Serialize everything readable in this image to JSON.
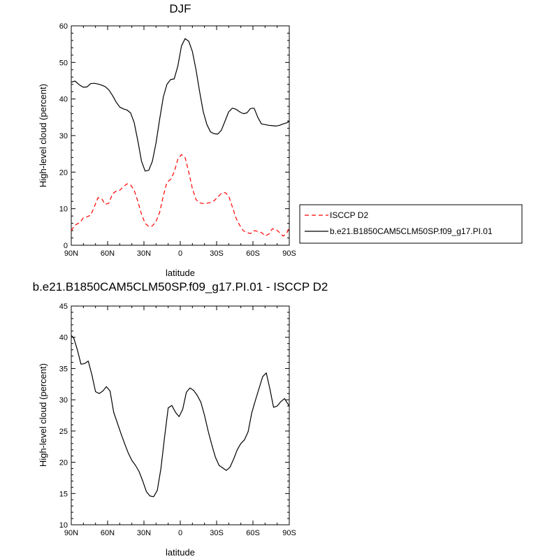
{
  "chart_data": [
    {
      "type": "line",
      "title": "DJF",
      "xlabel": "latitude",
      "ylabel": "High-level cloud (percent)",
      "xlim": [
        -90,
        90
      ],
      "ylim": [
        0,
        60
      ],
      "xticks": [
        -90,
        -60,
        -30,
        0,
        30,
        60,
        90
      ],
      "xtick_labels": [
        "90N",
        "60N",
        "30N",
        "0",
        "30S",
        "60S",
        "90S"
      ],
      "yticks": [
        0,
        10,
        20,
        30,
        40,
        50,
        60
      ],
      "ytick_labels": [
        "0",
        "10",
        "20",
        "30",
        "40",
        "50",
        "60"
      ],
      "grid": false,
      "legend": "right",
      "series": [
        {
          "name": "ISCCP D2",
          "color": "#ff0000",
          "dash": "dashed",
          "x": [
            -90,
            -87,
            -83,
            -80,
            -77,
            -74,
            -71,
            -68,
            -65,
            -62,
            -59,
            -56,
            -53,
            -50,
            -47,
            -44,
            -41,
            -38,
            -35,
            -32,
            -29,
            -26,
            -23,
            -20,
            -17,
            -14,
            -11,
            -8,
            -5,
            -2,
            1,
            4,
            7,
            10,
            13,
            16,
            19,
            22,
            25,
            28,
            31,
            34,
            37,
            40,
            43,
            46,
            49,
            52,
            55,
            58,
            61,
            64,
            67,
            70,
            73,
            76,
            79,
            82,
            85,
            88,
            90
          ],
          "y": [
            4.0,
            5.5,
            6.2,
            7.5,
            7.8,
            8.2,
            10.5,
            13.0,
            12.8,
            11.2,
            11.5,
            14.0,
            14.8,
            15.0,
            16.0,
            16.8,
            16.5,
            15.0,
            12.0,
            8.5,
            6.0,
            5.1,
            5.3,
            6.5,
            9.0,
            13.5,
            17.2,
            18.0,
            20.0,
            23.5,
            24.8,
            24.0,
            20.0,
            15.5,
            12.5,
            11.6,
            11.4,
            11.5,
            11.7,
            12.2,
            13.2,
            14.2,
            14.4,
            13.5,
            10.5,
            7.5,
            5.5,
            4.0,
            3.5,
            3.2,
            4.0,
            3.8,
            3.5,
            2.6,
            3.0,
            4.5,
            4.3,
            3.5,
            2.5,
            3.3,
            5.0
          ]
        },
        {
          "name": "b.e21.B1850CAM5CLM50SP.f09_g17.PI.01",
          "color": "#000000",
          "dash": "solid",
          "x": [
            -90,
            -87,
            -83,
            -80,
            -77,
            -74,
            -71,
            -68,
            -65,
            -62,
            -59,
            -56,
            -53,
            -50,
            -47,
            -44,
            -41,
            -38,
            -35,
            -32,
            -29,
            -26,
            -23,
            -20,
            -17,
            -14,
            -11,
            -8,
            -5,
            -2,
            1,
            4,
            7,
            10,
            13,
            16,
            19,
            22,
            25,
            28,
            31,
            34,
            37,
            40,
            43,
            46,
            49,
            52,
            55,
            58,
            61,
            64,
            67,
            70,
            73,
            76,
            79,
            82,
            85,
            88,
            90
          ],
          "y": [
            44.6,
            44.9,
            43.8,
            43.2,
            43.3,
            44.2,
            44.3,
            44.1,
            43.8,
            43.4,
            42.5,
            41.0,
            39.2,
            37.8,
            37.3,
            37.0,
            36.2,
            33.5,
            28.5,
            23.0,
            20.3,
            20.5,
            23.0,
            28.0,
            34.5,
            40.5,
            44.0,
            45.3,
            45.5,
            49.0,
            54.5,
            56.5,
            55.8,
            53.0,
            48.0,
            42.0,
            36.5,
            33.0,
            31.0,
            30.5,
            30.4,
            31.5,
            34.0,
            36.5,
            37.5,
            37.2,
            36.5,
            36.0,
            36.2,
            37.4,
            37.5,
            35.0,
            33.2,
            33.0,
            32.8,
            32.7,
            32.6,
            32.8,
            33.2,
            33.5,
            33.9
          ]
        }
      ]
    },
    {
      "type": "line",
      "title": "b.e21.B1850CAM5CLM50SP.f09_g17.PI.01 - ISCCP D2",
      "xlabel": "latitude",
      "ylabel": "High-level cloud (percent)",
      "xlim": [
        -90,
        90
      ],
      "ylim": [
        10,
        45
      ],
      "xticks": [
        -90,
        -60,
        -30,
        0,
        30,
        60,
        90
      ],
      "xtick_labels": [
        "90N",
        "60N",
        "30N",
        "0",
        "30S",
        "60S",
        "90S"
      ],
      "yticks": [
        10,
        15,
        20,
        25,
        30,
        35,
        40,
        45
      ],
      "ytick_labels": [
        "10",
        "15",
        "20",
        "25",
        "30",
        "35",
        "40",
        "45"
      ],
      "grid": false,
      "series": [
        {
          "color": "#000000",
          "dash": "solid",
          "x": [
            -90,
            -88,
            -85,
            -82,
            -79,
            -76,
            -73,
            -70,
            -67,
            -64,
            -61,
            -58,
            -55,
            -52,
            -49,
            -46,
            -43,
            -40,
            -37,
            -34,
            -31,
            -28,
            -25,
            -22,
            -19,
            -16,
            -13,
            -10,
            -7,
            -4,
            -1,
            2,
            5,
            8,
            11,
            14,
            17,
            20,
            23,
            26,
            29,
            32,
            35,
            38,
            41,
            44,
            47,
            50,
            53,
            56,
            59,
            62,
            65,
            68,
            71,
            74,
            77,
            80,
            83,
            86,
            90
          ],
          "y": [
            40.3,
            39.9,
            38.0,
            35.7,
            35.8,
            36.2,
            34.0,
            31.3,
            31.0,
            31.4,
            32.1,
            31.4,
            28.0,
            26.3,
            24.6,
            23.0,
            21.5,
            20.3,
            19.5,
            18.5,
            17.0,
            15.3,
            14.6,
            14.5,
            15.5,
            19.0,
            24.0,
            28.7,
            29.1,
            28.0,
            27.3,
            28.5,
            31.2,
            31.9,
            31.5,
            30.7,
            29.6,
            27.5,
            25.0,
            22.8,
            20.8,
            19.5,
            19.1,
            18.7,
            19.2,
            20.5,
            22.0,
            23.0,
            23.6,
            24.9,
            27.9,
            29.9,
            31.8,
            33.7,
            34.3,
            31.7,
            28.8,
            29.0,
            29.7,
            30.2,
            29.0
          ]
        }
      ]
    }
  ]
}
